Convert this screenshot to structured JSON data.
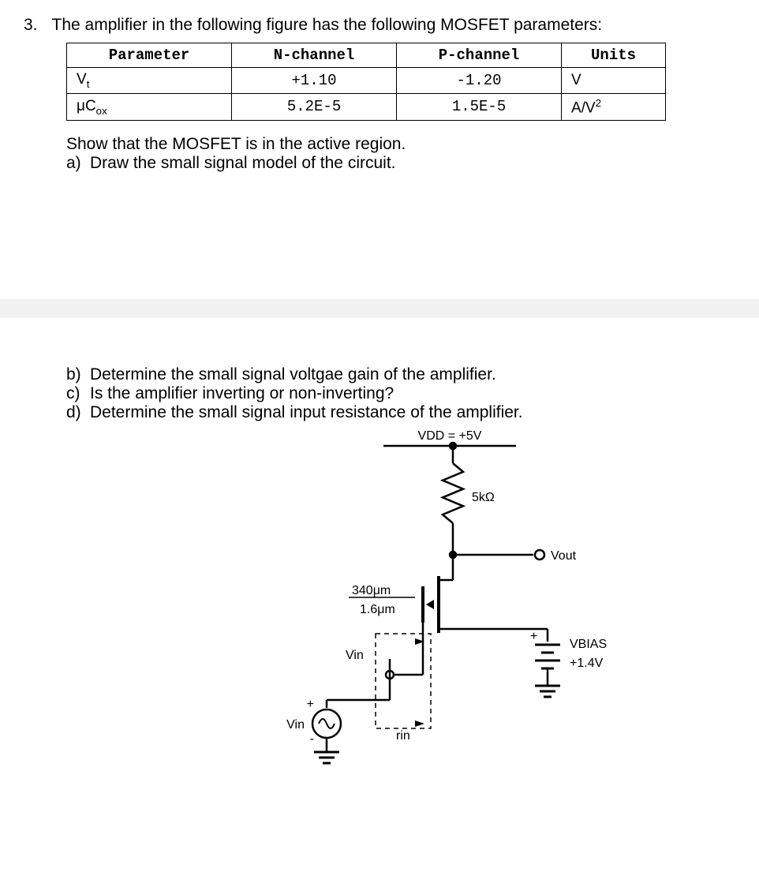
{
  "question": {
    "number": "3.",
    "prompt": "The amplifier in the following figure has the following MOSFET parameters:"
  },
  "table": {
    "headers": [
      "Parameter",
      "N-channel",
      "P-channel",
      "Units"
    ],
    "rows": [
      {
        "param_html": "V<sub class=\"sub-sup\">t</sub>",
        "n": "+1.10",
        "p": "-1.20",
        "u": "V"
      },
      {
        "param_html": "μC<sub class=\"sub-sup\">ox</sub>",
        "n": "5.2E-5",
        "p": "1.5E-5",
        "u_html": "A/V<sup class=\"sub-sup\">2</sup>"
      }
    ]
  },
  "instruction": "Show that the MOSFET is in the active region.",
  "subquestions": [
    {
      "letter": "a)",
      "text": "Draw the small signal model of the circuit."
    },
    {
      "letter": "b)",
      "text": "Determine the small signal voltgae gain of the amplifier."
    },
    {
      "letter": "c)",
      "text": "Is the amplifier inverting or non-inverting?"
    },
    {
      "letter": "d)",
      "text": "Determine the small signal input resistance of the amplifier."
    }
  ],
  "figure": {
    "vdd_label": "VDD = +5V",
    "r_label": "5kΩ",
    "vout_label": "Vout",
    "wl_top": "340μm",
    "wl_bot": "1.6μm",
    "vin_port": "Vin",
    "rin_label": "rin",
    "vin_src": "Vin",
    "vbias_label": "VBIAS",
    "vbias_val": "+1.4V",
    "plus": "+",
    "minus": "-",
    "stroke": "#000000",
    "linewidth": 2.5,
    "font": "bold 20px Arial"
  }
}
